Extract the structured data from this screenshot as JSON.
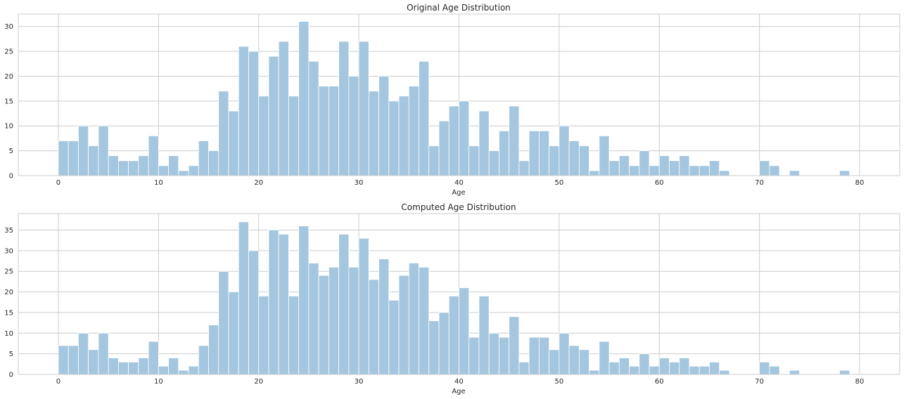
{
  "chart_data": [
    {
      "type": "bar",
      "title": "Original Age Distribution",
      "xlabel": "Age",
      "ylabel": "",
      "xlim": [
        -4,
        84
      ],
      "ylim": [
        0,
        32.5
      ],
      "xticks": [
        "0",
        "10",
        "20",
        "30",
        "40",
        "50",
        "60",
        "70",
        "80"
      ],
      "yticks": [
        "0",
        "5",
        "10",
        "15",
        "20",
        "25",
        "30"
      ],
      "grid": true,
      "bin_width": 1,
      "bin_start": 0,
      "color": "#a4c7df",
      "values": [
        7,
        7,
        10,
        6,
        10,
        4,
        3,
        3,
        4,
        8,
        2,
        4,
        1,
        2,
        7,
        5,
        17,
        13,
        26,
        25,
        16,
        24,
        27,
        16,
        31,
        23,
        18,
        18,
        27,
        20,
        27,
        17,
        20,
        15,
        16,
        18,
        23,
        6,
        11,
        14,
        15,
        6,
        13,
        5,
        9,
        14,
        3,
        9,
        9,
        6,
        10,
        7,
        6,
        1,
        8,
        3,
        4,
        2,
        5,
        2,
        4,
        3,
        4,
        2,
        2,
        3,
        1,
        0,
        0,
        0,
        3,
        2,
        0,
        1,
        0,
        0,
        0,
        0,
        1,
        0
      ]
    },
    {
      "type": "bar",
      "title": "Computed Age Distribution",
      "xlabel": "Age",
      "ylabel": "",
      "xlim": [
        -4,
        84
      ],
      "ylim": [
        0,
        39
      ],
      "xticks": [
        "0",
        "10",
        "20",
        "30",
        "40",
        "50",
        "60",
        "70",
        "80"
      ],
      "yticks": [
        "0",
        "5",
        "10",
        "15",
        "20",
        "25",
        "30",
        "35"
      ],
      "grid": true,
      "bin_width": 1,
      "bin_start": 0,
      "color": "#a4c7df",
      "values": [
        7,
        7,
        10,
        6,
        10,
        4,
        3,
        3,
        4,
        8,
        2,
        4,
        1,
        2,
        7,
        12,
        25,
        20,
        37,
        30,
        19,
        35,
        34,
        19,
        36,
        27,
        24,
        26,
        34,
        26,
        33,
        23,
        28,
        18,
        24,
        27,
        26,
        13,
        15,
        19,
        21,
        9,
        19,
        10,
        9,
        14,
        3,
        9,
        9,
        6,
        10,
        7,
        6,
        1,
        8,
        3,
        4,
        2,
        5,
        2,
        4,
        3,
        4,
        2,
        2,
        3,
        1,
        0,
        0,
        0,
        3,
        2,
        0,
        1,
        0,
        0,
        0,
        0,
        1,
        0
      ]
    }
  ]
}
